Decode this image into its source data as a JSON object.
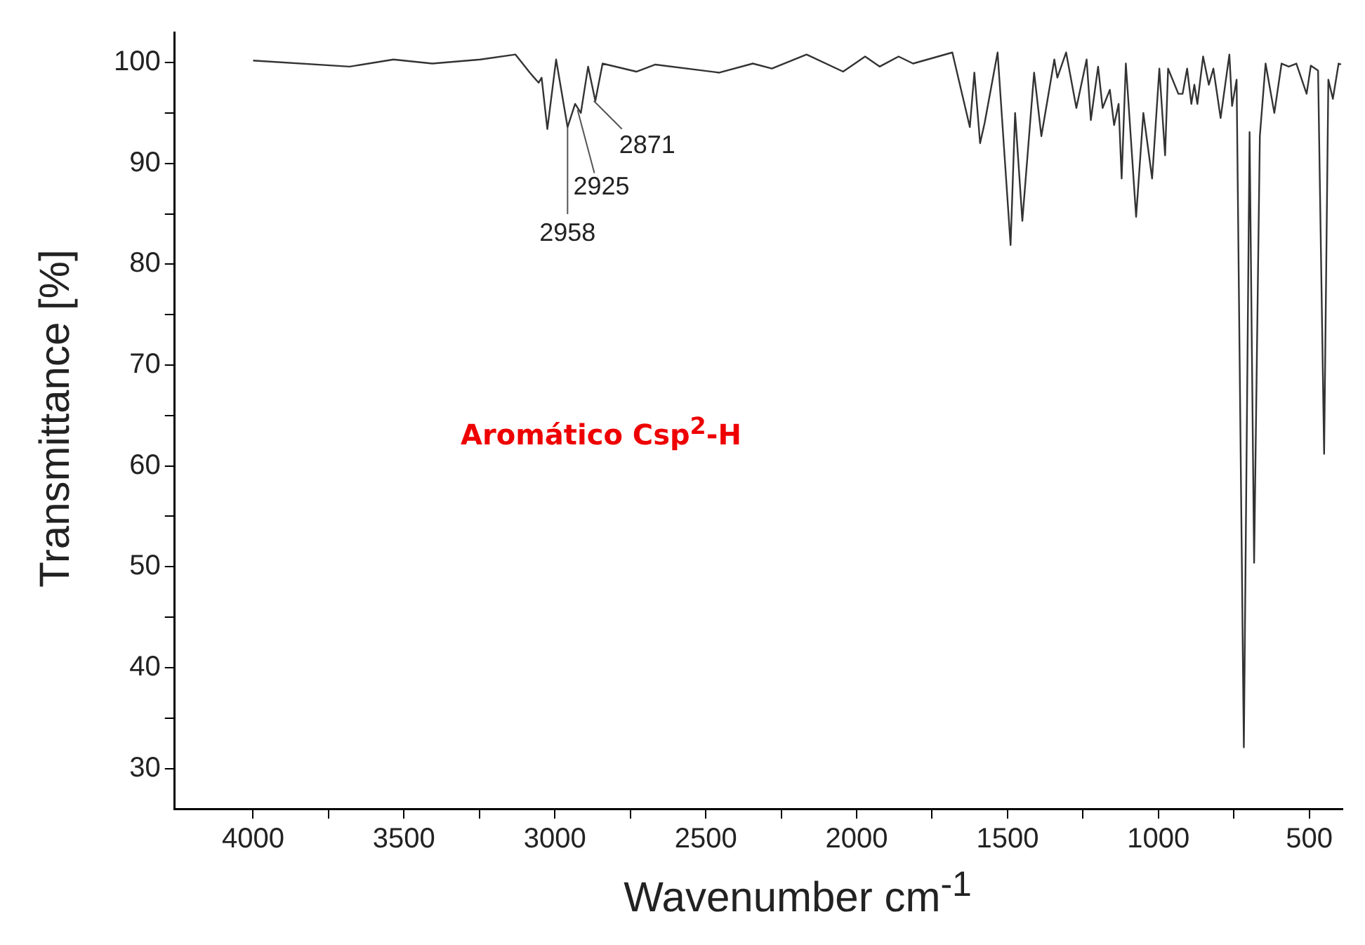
{
  "chart_data": {
    "type": "line",
    "xlabel": "Wavenumber cm$^{-1}$",
    "ylabel": "Transmittance [%]",
    "x": [
      4000,
      3680,
      3535,
      3406,
      3247,
      3131,
      3083,
      3054,
      3044,
      3025,
      2996,
      2958,
      2933,
      2914,
      2890,
      2866,
      2842,
      2730,
      2667,
      2455,
      2344,
      2281,
      2166,
      2045,
      1972,
      1924,
      1861,
      1813,
      1683,
      1625,
      1610,
      1591,
      1576,
      1533,
      1490,
      1475,
      1451,
      1412,
      1388,
      1345,
      1335,
      1306,
      1272,
      1238,
      1224,
      1200,
      1185,
      1161,
      1147,
      1132,
      1122,
      1108,
      1074,
      1050,
      1021,
      997,
      978,
      968,
      934,
      920,
      905,
      891,
      881,
      871,
      852,
      833,
      818,
      794,
      765,
      756,
      741,
      717,
      698,
      683,
      664,
      645,
      616,
      592,
      568,
      543,
      509,
      495,
      471,
      451,
      437,
      422,
      403,
      395
    ],
    "series": [
      {
        "color": "#333333",
        "values": [
          100.2,
          99.6,
          100.3,
          99.9,
          100.3,
          100.8,
          99,
          98,
          98.5,
          93.4,
          100.3,
          93.6,
          95.9,
          95,
          99.6,
          96.2,
          99.9,
          99.1,
          99.8,
          99,
          99.9,
          99.4,
          100.8,
          99.1,
          100.6,
          99.6,
          100.6,
          99.9,
          101,
          93.6,
          99,
          92,
          94,
          101,
          81.9,
          95,
          84.3,
          99,
          92.7,
          100.3,
          98.5,
          101,
          95.5,
          100.3,
          94.3,
          99.6,
          95.5,
          97.3,
          93.8,
          95.9,
          88.5,
          99.9,
          84.7,
          95,
          88.5,
          99.4,
          90.8,
          99.4,
          96.9,
          96.9,
          99.4,
          95.9,
          97.8,
          95.9,
          100.6,
          97.8,
          99.4,
          94.5,
          100.8,
          95.7,
          98.3,
          32.1,
          93.1,
          50.4,
          92.7,
          99.9,
          95,
          99.9,
          99.6,
          99.9,
          96.9,
          99.7,
          99.2,
          61.2,
          98.3,
          96.4,
          99.9,
          99.8
        ]
      }
    ],
    "xlim": [
      4260,
      390
    ],
    "xticks": [
      4000,
      {
        "value": 3750,
        "label": null
      },
      3500,
      {
        "value": 3250,
        "label": null
      },
      3000,
      {
        "value": 2750,
        "label": null
      },
      2500,
      {
        "value": 2250,
        "label": null
      },
      2000,
      {
        "value": 1750,
        "label": null
      },
      1500,
      {
        "value": 1250,
        "label": null
      },
      1000,
      {
        "value": 750,
        "label": null
      },
      500
    ],
    "ylim": [
      26,
      103
    ],
    "yticks": [
      30,
      {
        "value": 35,
        "label": null
      },
      40,
      {
        "value": 45,
        "label": null
      },
      50,
      {
        "value": 55,
        "label": null
      },
      60,
      {
        "value": 65,
        "label": null
      },
      70,
      {
        "value": 75,
        "label": null
      },
      80,
      {
        "value": 85,
        "label": null
      },
      90,
      {
        "value": 95,
        "label": null
      },
      100
    ],
    "grid": false,
    "legend": false,
    "marker": "none",
    "line_style": "solid",
    "annotations": [
      {
        "text": "2958",
        "x": 2958,
        "y": 93.6
      },
      {
        "text": "2925",
        "x": 2925,
        "y": 95.3
      },
      {
        "text": "2871",
        "x": 2871,
        "y": 96.2
      },
      "Aromático Csp$^{2}$-H"
    ]
  }
}
